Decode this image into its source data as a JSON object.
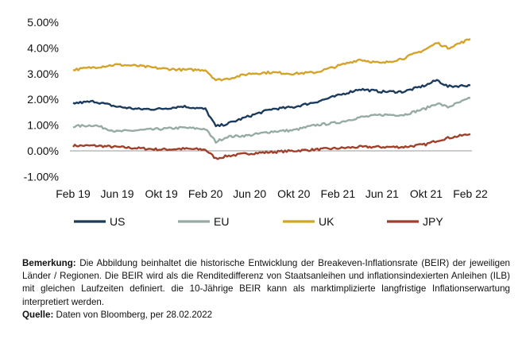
{
  "chart_data": {
    "type": "line",
    "ylim": [
      -1,
      5
    ],
    "y_ticks": [
      "5.00%",
      "4.00%",
      "3.00%",
      "2.00%",
      "1.00%",
      "0.00%",
      "-1.00%"
    ],
    "y_tick_values": [
      5,
      4,
      3,
      2,
      1,
      0,
      -1
    ],
    "x_ticks": [
      "Feb 19",
      "Jun 19",
      "Okt 19",
      "Feb 20",
      "Jun 20",
      "Okt 20",
      "Feb 21",
      "Jun 21",
      "Okt 21",
      "Feb 22"
    ],
    "x": [
      "2019-02",
      "2019-04",
      "2019-06",
      "2019-08",
      "2019-10",
      "2019-12",
      "2020-02",
      "2020-03",
      "2020-04",
      "2020-06",
      "2020-08",
      "2020-10",
      "2020-12",
      "2021-02",
      "2021-04",
      "2021-06",
      "2021-08",
      "2021-10",
      "2021-11",
      "2021-12",
      "2022-02"
    ],
    "series": [
      {
        "name": "US",
        "color": "#1b3a5c",
        "values": [
          1.85,
          1.92,
          1.72,
          1.62,
          1.63,
          1.73,
          1.62,
          0.95,
          1.05,
          1.35,
          1.62,
          1.7,
          1.9,
          2.15,
          2.4,
          2.3,
          2.3,
          2.55,
          2.75,
          2.5,
          2.55
        ]
      },
      {
        "name": "EU",
        "color": "#97aba6",
        "values": [
          0.95,
          1.0,
          0.75,
          0.8,
          0.85,
          0.9,
          0.85,
          0.35,
          0.55,
          0.6,
          0.75,
          0.8,
          1.0,
          1.1,
          1.3,
          1.4,
          1.4,
          1.65,
          1.85,
          1.7,
          2.05
        ]
      },
      {
        "name": "UK",
        "color": "#d4a32a",
        "values": [
          3.15,
          3.25,
          3.35,
          3.3,
          3.2,
          3.15,
          3.15,
          2.75,
          2.8,
          3.0,
          3.05,
          3.0,
          3.05,
          3.3,
          3.55,
          3.4,
          3.6,
          3.95,
          4.2,
          4.0,
          4.35
        ]
      },
      {
        "name": "JPY",
        "color": "#a0402a",
        "values": [
          0.2,
          0.2,
          0.15,
          0.1,
          0.05,
          0.08,
          0.05,
          -0.3,
          -0.2,
          -0.1,
          -0.05,
          0.0,
          0.05,
          0.1,
          0.15,
          0.15,
          0.15,
          0.25,
          0.4,
          0.5,
          0.65
        ]
      }
    ]
  },
  "note": {
    "label": "Bemerkung:",
    "text": "Die Abbildung beinhaltet die historische Entwicklung der Breakeven-Inflationsrate (BEIR) der jeweiligen Länder / Regionen. Die BEIR wird als die Renditedifferenz von Staatsanleihen und inflationsindexierten Anleihen (ILB) mit gleichen Laufzeiten definiert. die 10-Jährige BEIR kann als marktimplizierte langfristige Inflationserwartung interpretiert werden.",
    "source_label": "Quelle:",
    "source_text": "Daten von Bloomberg, per 28.02.2022"
  }
}
